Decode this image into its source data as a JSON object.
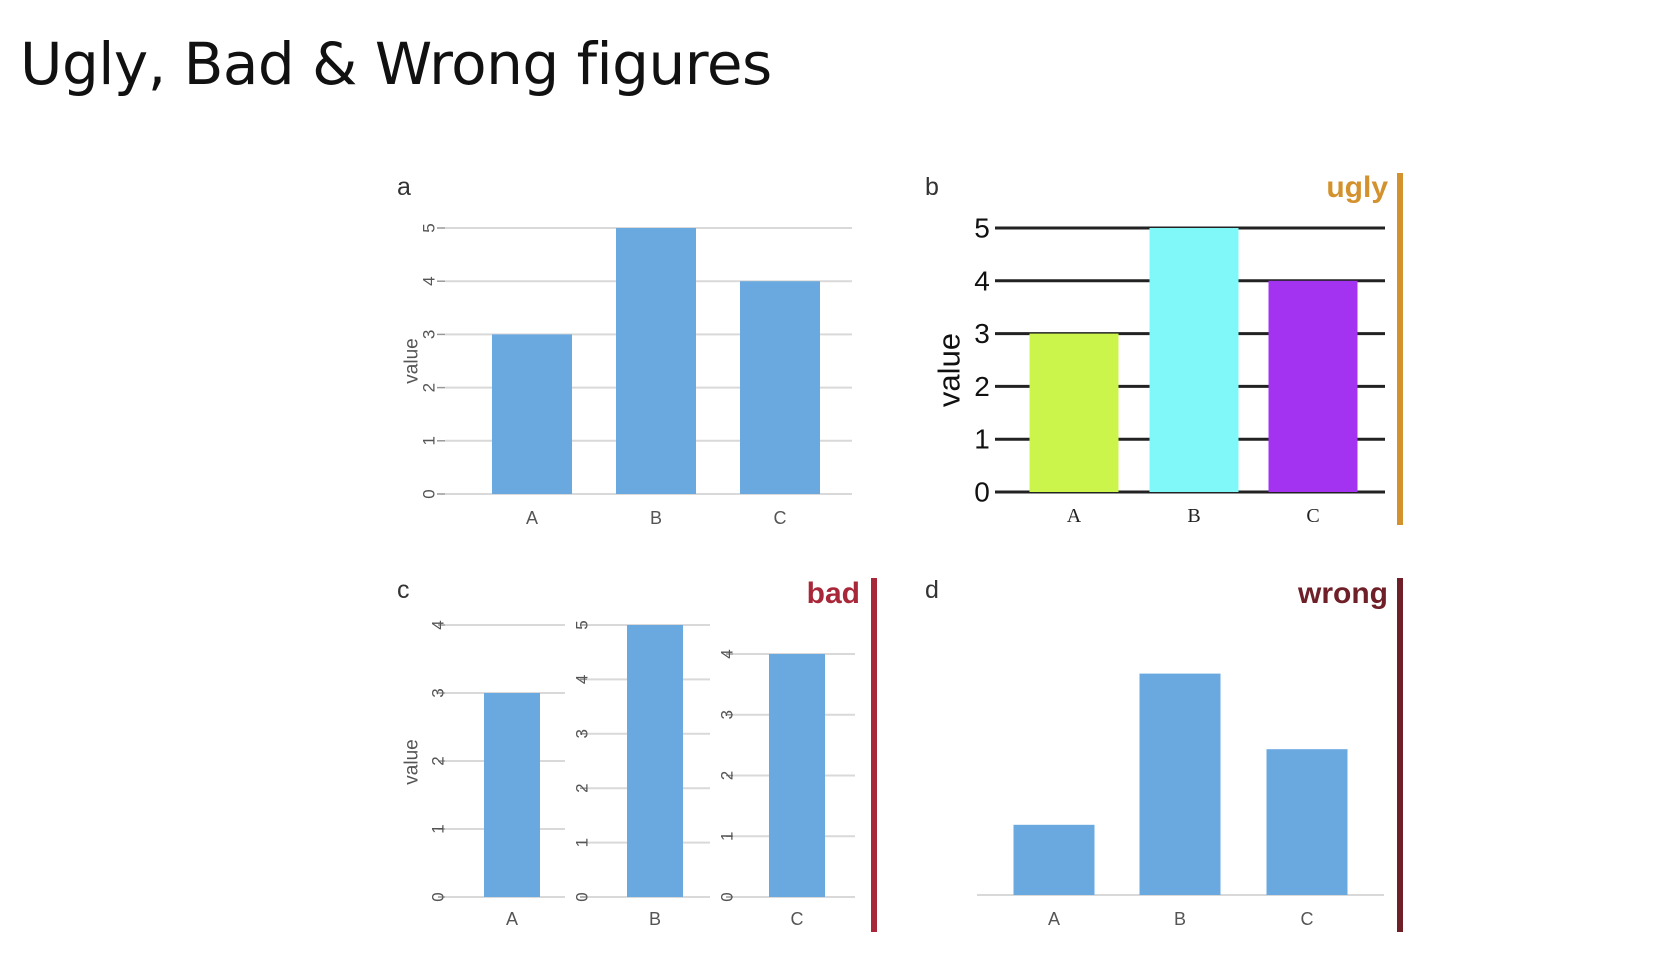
{
  "title": "Ugly, Bad & Wrong figures",
  "tags": {
    "ugly": "ugly",
    "bad": "bad",
    "wrong": "wrong"
  },
  "colors": {
    "bar_blue": "#6aa8e0",
    "grid": "#d9d9d9",
    "ugly": "#d4922e",
    "bad": "#a8283a",
    "wrong": "#6e1f28",
    "ugly_bars": [
      "#ccf54c",
      "#80f8fa",
      "#a333f0"
    ]
  },
  "chart_data": [
    {
      "panel": "a",
      "type": "bar",
      "categories": [
        "A",
        "B",
        "C"
      ],
      "values": [
        3,
        5,
        4
      ],
      "ylabel": "value",
      "ylim": [
        0,
        5
      ],
      "yticks": [
        0,
        1,
        2,
        3,
        4,
        5
      ],
      "grid": true
    },
    {
      "panel": "b",
      "type": "bar",
      "tag": "ugly",
      "categories": [
        "A",
        "B",
        "C"
      ],
      "values": [
        3,
        5,
        4
      ],
      "ylabel": "value",
      "ylim": [
        0,
        5
      ],
      "yticks": [
        0,
        1,
        2,
        3,
        4,
        5
      ],
      "grid": true,
      "bar_colors": [
        "#ccf54c",
        "#80f8fa",
        "#a333f0"
      ]
    },
    {
      "panel": "c",
      "type": "bar",
      "tag": "bad",
      "ylabel": "value",
      "subplots": [
        {
          "category": "A",
          "value": 3,
          "ylim": [
            0,
            4
          ],
          "yticks": [
            0,
            1,
            2,
            3,
            4
          ]
        },
        {
          "category": "B",
          "value": 5,
          "ylim": [
            0,
            5
          ],
          "yticks": [
            0,
            1,
            2,
            3,
            4,
            5
          ]
        },
        {
          "category": "C",
          "value": 4,
          "ylim": [
            0,
            4
          ],
          "yticks": [
            0,
            1,
            2,
            3,
            4
          ]
        }
      ]
    },
    {
      "panel": "d",
      "type": "bar",
      "tag": "wrong",
      "categories": [
        "A",
        "B",
        "C"
      ],
      "values": [
        1.3,
        4.1,
        2.7
      ],
      "ylim": [
        0,
        5
      ]
    }
  ]
}
